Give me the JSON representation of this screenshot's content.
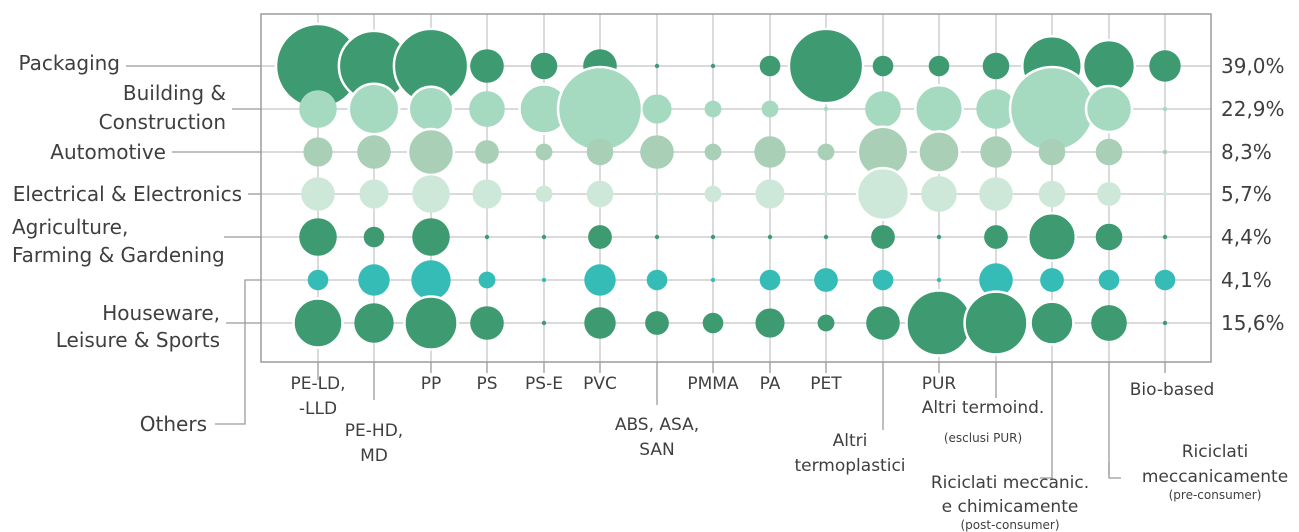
{
  "chart_data": {
    "type": "bubble-matrix",
    "rows": [
      {
        "name": "Packaging",
        "lines": [
          "Packaging"
        ],
        "share": "39,0%"
      },
      {
        "name": "Building & Construction",
        "lines": [
          "Building &",
          "Construction"
        ],
        "share": "22,9%"
      },
      {
        "name": "Automotive",
        "lines": [
          "Automotive"
        ],
        "share": "8,3%"
      },
      {
        "name": "Electrical & Electronics",
        "lines": [
          "Electrical & Electronics"
        ],
        "share": "5,7%"
      },
      {
        "name": "Agriculture, Farming & Gardening",
        "lines": [
          "Agriculture,",
          "Farming & Gardening"
        ],
        "share": "4,4%"
      },
      {
        "name": "Others",
        "lines": [
          "Others"
        ],
        "share": "4,1%"
      },
      {
        "name": "Houseware, Leisure & Sports",
        "lines": [
          "Houseware,",
          "Leisure & Sports"
        ],
        "share": "15,6%"
      }
    ],
    "columns": [
      {
        "name": "PE-LD, -LLD",
        "lines": [
          "PE-LD,",
          "-LLD"
        ],
        "sub": ""
      },
      {
        "name": "PE-HD, MD",
        "lines": [
          "PE-HD,",
          "MD"
        ],
        "sub": ""
      },
      {
        "name": "PP",
        "lines": [
          "PP"
        ],
        "sub": ""
      },
      {
        "name": "PS",
        "lines": [
          "PS"
        ],
        "sub": ""
      },
      {
        "name": "PS-E",
        "lines": [
          "PS-E"
        ],
        "sub": ""
      },
      {
        "name": "PVC",
        "lines": [
          "PVC"
        ],
        "sub": ""
      },
      {
        "name": "ABS, ASA, SAN",
        "lines": [
          "ABS, ASA,",
          "SAN"
        ],
        "sub": ""
      },
      {
        "name": "PMMA",
        "lines": [
          "PMMA"
        ],
        "sub": ""
      },
      {
        "name": "PA",
        "lines": [
          "PA"
        ],
        "sub": ""
      },
      {
        "name": "PET",
        "lines": [
          "PET"
        ],
        "sub": ""
      },
      {
        "name": "Altri termoplastici",
        "lines": [
          "Altri",
          "termoplastici"
        ],
        "sub": ""
      },
      {
        "name": "PUR",
        "lines": [
          "PUR"
        ],
        "sub": ""
      },
      {
        "name": "Altri termoind.",
        "lines": [
          "Altri termoind."
        ],
        "sub": "(esclusi PUR)"
      },
      {
        "name": "Riciclati meccanic. e chimicamente",
        "lines": [
          "Riciclati meccanic.",
          "e chimicamente"
        ],
        "sub": "(post-consumer)"
      },
      {
        "name": "Riciclati meccanicamente",
        "lines": [
          "Riciclati",
          "meccanicamente"
        ],
        "sub": "(pre-consumer)"
      },
      {
        "name": "Bio-based",
        "lines": [
          "Bio-based"
        ],
        "sub": ""
      }
    ],
    "bubble_size_note": "relative bubble size (0-100)",
    "values": [
      [
        100,
        70,
        78,
        16,
        10,
        16,
        0,
        0,
        6,
        78,
        6,
        6,
        10,
        50,
        38,
        14
      ],
      [
        20,
        36,
        28,
        18,
        34,
        100,
        12,
        4,
        4,
        0,
        18,
        32,
        22,
        100,
        30,
        0
      ],
      [
        12,
        16,
        30,
        8,
        4,
        10,
        16,
        4,
        14,
        4,
        36,
        24,
        14,
        10,
        10,
        0
      ],
      [
        16,
        12,
        20,
        12,
        4,
        10,
        0,
        4,
        12,
        0,
        38,
        18,
        16,
        10,
        8,
        0
      ],
      [
        20,
        6,
        20,
        0,
        0,
        8,
        0,
        0,
        0,
        0,
        8,
        0,
        8,
        32,
        10,
        0
      ],
      [
        6,
        14,
        22,
        4,
        0,
        14,
        6,
        0,
        6,
        8,
        6,
        0,
        16,
        8,
        6,
        6
      ],
      [
        34,
        22,
        40,
        16,
        0,
        14,
        8,
        6,
        12,
        4,
        16,
        60,
        56,
        26,
        18,
        0
      ]
    ],
    "row_colors": [
      "#3e9a70",
      "#a5d9c0",
      "#a9d0b6",
      "#cde8d8",
      "#3e9a70",
      "#35bcb6",
      "#3e9a70"
    ],
    "frame_color": "#9b9b9b",
    "gridline_color": "#c3c3c3",
    "text_color": "#3f3f3f"
  }
}
